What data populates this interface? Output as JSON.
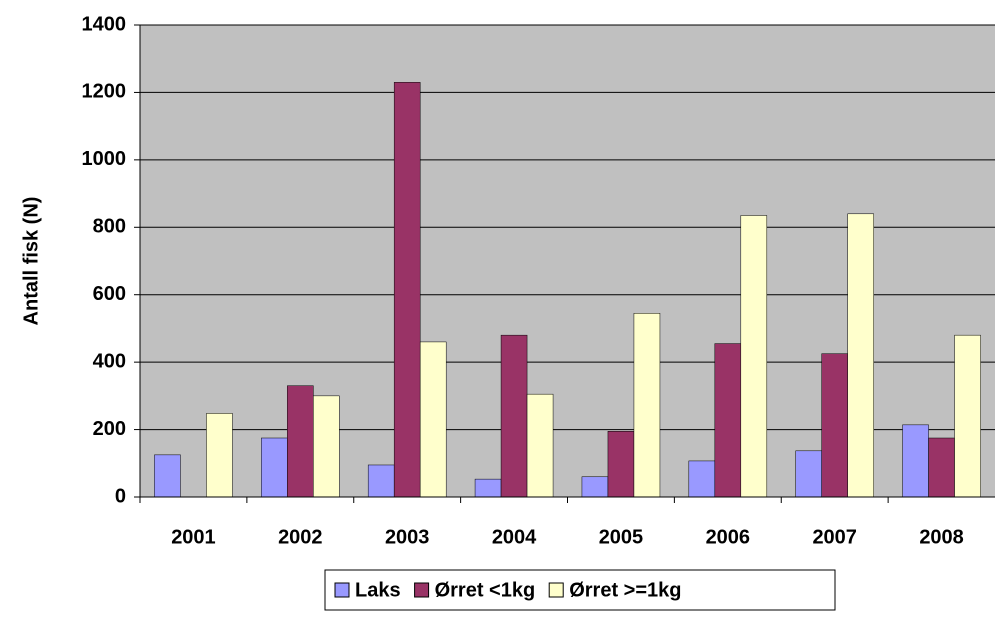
{
  "chart_data": {
    "type": "bar",
    "y_label": "Antall fisk (N)",
    "categories": [
      "2001",
      "2002",
      "2003",
      "2004",
      "2005",
      "2006",
      "2007",
      "2008"
    ],
    "series": [
      {
        "name": "Laks",
        "color": "#9999ff",
        "values": [
          125,
          175,
          95,
          53,
          60,
          107,
          137,
          214
        ]
      },
      {
        "name": "Ørret <1kg",
        "color": "#993366",
        "values": [
          0,
          330,
          1230,
          480,
          195,
          455,
          425,
          175
        ]
      },
      {
        "name": "Ørret >=1kg",
        "color": "#ffffcc",
        "values": [
          248,
          300,
          460,
          305,
          545,
          835,
          840,
          480
        ]
      }
    ],
    "ylim": [
      0,
      1400
    ],
    "yticks": [
      0,
      200,
      400,
      600,
      800,
      1000,
      1200,
      1400
    ],
    "grid": true
  }
}
